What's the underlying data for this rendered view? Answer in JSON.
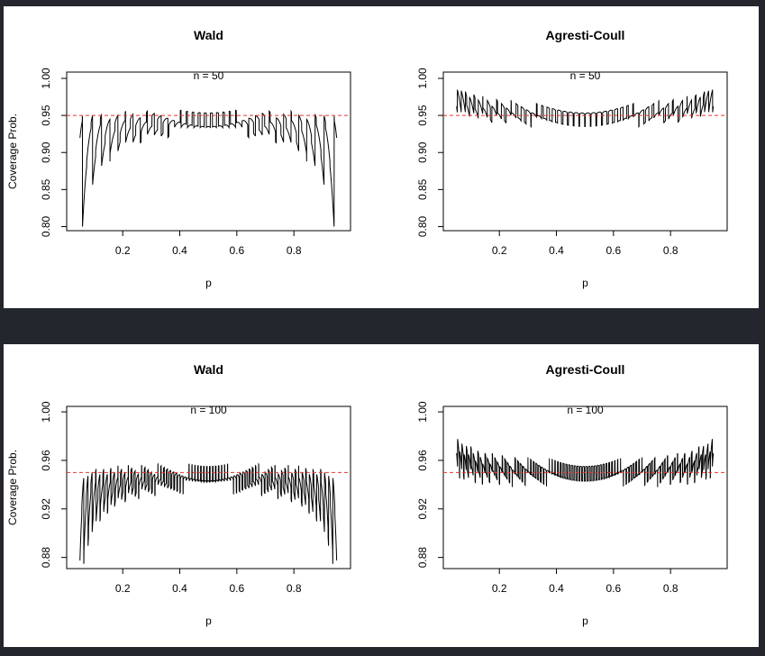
{
  "chart_data": [
    {
      "type": "line",
      "title": "Wald",
      "annotation": "n = 50",
      "n": 50,
      "xlabel": "p",
      "ylabel": "Coverage Prob.",
      "xlim": [
        0.05,
        0.95
      ],
      "ylim": [
        0.8,
        1.0
      ],
      "xticks": [
        "0.2",
        "0.4",
        "0.6",
        "0.8"
      ],
      "yticks": [
        "0.80",
        "0.85",
        "0.90",
        "0.95",
        "1.00"
      ],
      "reference_line": {
        "y": 0.95,
        "color": "#e8332e",
        "style": "dashed"
      },
      "series": [
        {
          "method": "wald",
          "color": "#000000"
        }
      ]
    },
    {
      "type": "line",
      "title": "Agresti-Coull",
      "annotation": "n = 50",
      "n": 50,
      "xlabel": "p",
      "ylabel": "",
      "xlim": [
        0.05,
        0.95
      ],
      "ylim": [
        0.8,
        1.0
      ],
      "xticks": [
        "0.2",
        "0.4",
        "0.6",
        "0.8"
      ],
      "yticks": [
        "0.80",
        "0.85",
        "0.90",
        "0.95",
        "1.00"
      ],
      "reference_line": {
        "y": 0.95,
        "color": "#e8332e",
        "style": "dashed"
      },
      "series": [
        {
          "method": "agresti-coull",
          "color": "#000000"
        }
      ]
    },
    {
      "type": "line",
      "title": "Wald",
      "annotation": "n = 100",
      "n": 100,
      "xlabel": "p",
      "ylabel": "Coverage Prob.",
      "xlim": [
        0.05,
        0.95
      ],
      "ylim": [
        0.875,
        1.0
      ],
      "xticks": [
        "0.2",
        "0.4",
        "0.6",
        "0.8"
      ],
      "yticks": [
        "0.88",
        "0.92",
        "0.96",
        "1.00"
      ],
      "reference_line": {
        "y": 0.95,
        "color": "#e8332e",
        "style": "dashed"
      },
      "series": [
        {
          "method": "wald",
          "color": "#000000"
        }
      ]
    },
    {
      "type": "line",
      "title": "Agresti-Coull",
      "annotation": "n = 100",
      "n": 100,
      "xlabel": "p",
      "ylabel": "",
      "xlim": [
        0.05,
        0.95
      ],
      "ylim": [
        0.875,
        1.0
      ],
      "xticks": [
        "0.2",
        "0.4",
        "0.6",
        "0.8"
      ],
      "yticks": [
        "0.88",
        "0.92",
        "0.96",
        "1.00"
      ],
      "reference_line": {
        "y": 0.95,
        "color": "#e8332e",
        "style": "dashed"
      },
      "series": [
        {
          "method": "agresti-coull",
          "color": "#000000"
        }
      ]
    }
  ]
}
